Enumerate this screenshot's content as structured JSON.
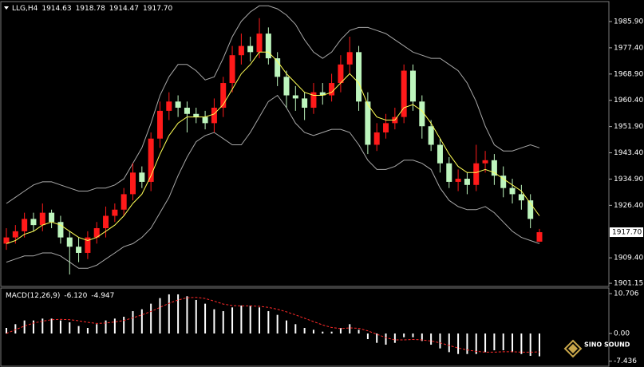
{
  "chart_data": [
    {
      "type": "candlestick",
      "title": "LLG,H4",
      "header_values": [
        1914.63,
        1918.78,
        1914.47,
        {
          "value": 1917.7,
          "label": "1917.70"
        }
      ],
      "up_color": "#ff1a1a",
      "down_color": "#bdf5bd",
      "band_color": "#a8a8a8",
      "ma_color": "#ffff55",
      "ylim": [
        1900.4,
        1992.1
      ],
      "yticks": [
        {
          "value": 1985.9,
          "label": "1985.90"
        },
        {
          "value": 1977.4,
          "label": "1977.40"
        },
        {
          "value": 1968.9,
          "label": "1968.90"
        },
        {
          "value": 1960.4,
          "label": "1960.40"
        },
        {
          "value": 1951.9,
          "label": "1951.90"
        },
        {
          "value": 1943.4,
          "label": "1943.40"
        },
        {
          "value": 1934.9,
          "label": "1934.90"
        },
        {
          "value": 1926.4,
          "label": "1926.40"
        },
        {
          "value": 1909.4,
          "label": "1909.40"
        },
        1901.15
      ],
      "current_price": {
        "value": 1917.7,
        "label": "1917.70"
      },
      "open": [
        1914,
        1916,
        1918,
        1922,
        1920,
        1924,
        1921,
        1916,
        1913,
        1911,
        1916,
        1919,
        1923,
        1925,
        1930,
        1937,
        1934,
        1948,
        1957,
        1960,
        1958,
        1956,
        1955,
        1953,
        1958,
        1966,
        1975,
        1978,
        1976,
        1982,
        1974,
        1968,
        1962,
        1961,
        1958,
        1963,
        1962,
        1966,
        1972,
        1976,
        1960,
        1946,
        1950,
        1953,
        1955,
        1970,
        1960,
        1952,
        1946,
        1940,
        1934,
        1935,
        1933,
        1940,
        1941,
        1936,
        1932,
        1930,
        1928,
        1914.63
      ],
      "high": [
        1919,
        1920,
        1924,
        1924,
        1927,
        1925,
        1923,
        1918,
        1916,
        1918,
        1921,
        1926,
        1927,
        1932,
        1940,
        1939,
        1950,
        1960,
        1963,
        1962,
        1960,
        1958,
        1957,
        1961,
        1968,
        1978,
        1982,
        1981,
        1987,
        1984,
        1976,
        1970,
        1965,
        1963,
        1966,
        1966,
        1969,
        1975,
        1981,
        1978,
        1963,
        1953,
        1956,
        1958,
        1972,
        1972,
        1962,
        1954,
        1948,
        1942,
        1938,
        1937,
        1946,
        1944,
        1943,
        1939,
        1935,
        1933,
        1930,
        1918.78
      ],
      "low": [
        1912,
        1914,
        1916,
        1918,
        1918,
        1919,
        1914,
        1904,
        1908,
        1909,
        1914,
        1916,
        1921,
        1923,
        1928,
        1932,
        1931,
        1945,
        1954,
        1955,
        1950,
        1953,
        1951,
        1950,
        1955,
        1963,
        1972,
        1973,
        1974,
        1972,
        1965,
        1958,
        1957,
        1954,
        1956,
        1959,
        1960,
        1963,
        1969,
        1957,
        1943,
        1944,
        1948,
        1951,
        1953,
        1957,
        1948,
        1944,
        1937,
        1932,
        1931,
        1930,
        1931,
        1937,
        1933,
        1929,
        1927,
        1925,
        1919,
        1914.47
      ],
      "close": [
        1916,
        1918,
        1922,
        1920,
        1924,
        1921,
        1916,
        1913,
        1911,
        1916,
        1919,
        1923,
        1925,
        1930,
        1937,
        1934,
        1948,
        1957,
        1960,
        1958,
        1956,
        1955,
        1953,
        1958,
        1966,
        1975,
        1978,
        1976,
        1982,
        1974,
        1968,
        1962,
        1961,
        1958,
        1963,
        1962,
        1966,
        1972,
        1976,
        1960,
        1946,
        1950,
        1953,
        1955,
        1970,
        1960,
        1952,
        1946,
        1940,
        1934,
        1935,
        1933,
        1940,
        1941,
        1936,
        1932,
        1930,
        1928,
        1922,
        1917.7
      ],
      "bb_upper": [
        1927,
        1929,
        1931,
        1933,
        1934,
        1934,
        1933,
        1932,
        1931,
        1931,
        1932,
        1932,
        1933,
        1935,
        1940,
        1945,
        1953,
        1962,
        1968,
        1972,
        1972,
        1970,
        1967,
        1968,
        1974,
        1981,
        1986,
        1989,
        1991,
        1991,
        1990,
        1988,
        1985,
        1980,
        1976,
        1974,
        1976,
        1980,
        1983,
        1984,
        1984,
        1983,
        1982,
        1980,
        1978,
        1976,
        1975,
        1974,
        1974,
        1972,
        1970,
        1966,
        1960,
        1952,
        1946,
        1944,
        1944,
        1945,
        1946,
        1945
      ],
      "bb_lower": [
        1908,
        1909,
        1910,
        1910,
        1911,
        1911,
        1910,
        1908,
        1906,
        1906,
        1907,
        1909,
        1911,
        1913,
        1914,
        1916,
        1919,
        1924,
        1929,
        1936,
        1942,
        1947,
        1949,
        1950,
        1948,
        1946,
        1946,
        1950,
        1955,
        1960,
        1962,
        1958,
        1953,
        1950,
        1949,
        1950,
        1951,
        1951,
        1950,
        1946,
        1941,
        1938,
        1938,
        1939,
        1941,
        1941,
        1940,
        1938,
        1932,
        1928,
        1926,
        1925,
        1925,
        1926,
        1924,
        1921,
        1918,
        1916,
        1915,
        1914
      ],
      "ma": [
        1914,
        1915,
        1917,
        1918,
        1920,
        1921,
        1920,
        1918,
        1916,
        1915,
        1916,
        1918,
        1920,
        1923,
        1927,
        1930,
        1936,
        1943,
        1949,
        1953,
        1955,
        1955,
        1955,
        1956,
        1959,
        1964,
        1969,
        1972,
        1976,
        1976,
        1973,
        1969,
        1966,
        1963,
        1962,
        1962,
        1963,
        1966,
        1969,
        1966,
        1959,
        1955,
        1954,
        1954,
        1958,
        1959,
        1957,
        1953,
        1948,
        1943,
        1939,
        1937,
        1937,
        1938,
        1937,
        1935,
        1933,
        1931,
        1927,
        1923
      ]
    },
    {
      "type": "macd",
      "title": "MACD(12,26,9)",
      "header_values": [
        {
          "value": -6.12,
          "label": "-6.120"
        },
        -4.947
      ],
      "hist_color": "#ffffff",
      "signal_color": "#ff2a2a",
      "ylim": [
        -8.56,
        11.99
      ],
      "yticks": [
        10.706,
        {
          "value": 0,
          "label": "0.00"
        },
        -7.436
      ],
      "histogram": [
        1.5,
        2.5,
        3.5,
        3.5,
        4,
        4,
        3.5,
        3,
        2,
        1.5,
        2.5,
        3.5,
        4,
        4.5,
        6,
        6.5,
        8,
        9.5,
        10.5,
        10.5,
        10,
        9,
        8,
        6.5,
        6,
        7,
        7.5,
        7.5,
        7,
        6,
        5,
        3.5,
        2.5,
        1.5,
        1,
        0.5,
        0.5,
        1.5,
        2.5,
        1,
        -1.5,
        -2.5,
        -3,
        -2.5,
        -1,
        -1,
        -2,
        -3,
        -4,
        -5,
        -5.5,
        -5.5,
        -5.5,
        -5,
        -4.5,
        -4.5,
        -5,
        -5.5,
        -6,
        -6.12
      ],
      "signal": [
        0,
        1,
        2,
        2.8,
        3.3,
        3.7,
        3.8,
        3.7,
        3.4,
        3,
        2.7,
        2.8,
        3.1,
        3.5,
        4.2,
        5,
        5.9,
        7,
        8.1,
        9,
        9.6,
        9.7,
        9.4,
        8.7,
        7.9,
        7.5,
        7.4,
        7.4,
        7.3,
        7,
        6.5,
        5.8,
        5,
        4.1,
        3.2,
        2.3,
        1.6,
        1.3,
        1.5,
        1.4,
        0.7,
        -0.2,
        -1.1,
        -1.7,
        -1.7,
        -1.6,
        -1.7,
        -2,
        -2.5,
        -3.2,
        -3.9,
        -4.4,
        -4.8,
        -5,
        -5,
        -4.9,
        -4.9,
        -5,
        -5,
        -4.947
      ]
    }
  ],
  "watermark": {
    "brand": "SINO SOUND"
  }
}
